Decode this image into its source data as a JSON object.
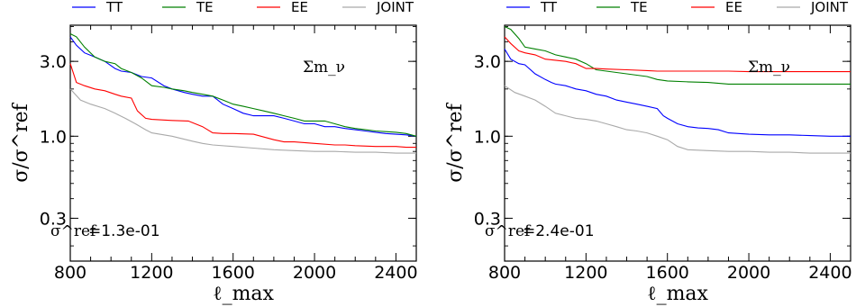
{
  "chart_data": [
    {
      "type": "line",
      "annotation": "Σm_ν",
      "ref_label": "σ^ref",
      "ref_value": "=1.3e-01",
      "xlabel": "ℓ_max",
      "ylabel": "σ/σ^ref",
      "x_ticks": [
        "800",
        "1200",
        "1600",
        "2000",
        "2400"
      ],
      "y_ticks": [
        "0.3",
        "1.0",
        "3.0"
      ],
      "xlim": [
        800,
        2500
      ],
      "ylim": [
        0.16,
        5.1
      ],
      "yscale": "log",
      "series": [
        {
          "name": "TT",
          "color": "#0000ff",
          "x": [
            800,
            830,
            870,
            920,
            970,
            1020,
            1050,
            1100,
            1150,
            1200,
            1260,
            1300,
            1360,
            1400,
            1450,
            1500,
            1550,
            1600,
            1650,
            1700,
            1750,
            1800,
            1850,
            1900,
            1950,
            2000,
            2050,
            2100,
            2150,
            2200,
            2250,
            2300,
            2350,
            2400,
            2450,
            2500
          ],
          "y": [
            4.3,
            3.8,
            3.4,
            3.2,
            3.0,
            2.7,
            2.6,
            2.55,
            2.4,
            2.35,
            2.1,
            2.0,
            1.9,
            1.85,
            1.8,
            1.8,
            1.6,
            1.5,
            1.4,
            1.35,
            1.35,
            1.35,
            1.3,
            1.25,
            1.2,
            1.2,
            1.15,
            1.15,
            1.12,
            1.1,
            1.08,
            1.06,
            1.04,
            1.03,
            1.02,
            1.0
          ]
        },
        {
          "name": "TE",
          "color": "#008000",
          "x": [
            800,
            830,
            870,
            920,
            970,
            1020,
            1050,
            1100,
            1150,
            1200,
            1260,
            1300,
            1360,
            1400,
            1450,
            1500,
            1550,
            1600,
            1650,
            1700,
            1750,
            1800,
            1850,
            1900,
            1950,
            2000,
            2050,
            2100,
            2150,
            2200,
            2250,
            2300,
            2350,
            2400,
            2450,
            2500
          ],
          "y": [
            4.5,
            4.3,
            3.7,
            3.2,
            3.0,
            2.9,
            2.7,
            2.55,
            2.35,
            2.1,
            2.05,
            2.0,
            1.95,
            1.9,
            1.85,
            1.8,
            1.7,
            1.6,
            1.55,
            1.5,
            1.45,
            1.4,
            1.35,
            1.3,
            1.25,
            1.25,
            1.25,
            1.2,
            1.15,
            1.12,
            1.1,
            1.08,
            1.07,
            1.06,
            1.04,
            1.0
          ]
        },
        {
          "name": "EE",
          "color": "#ff0000",
          "x": [
            800,
            830,
            870,
            920,
            970,
            1020,
            1050,
            1100,
            1130,
            1170,
            1200,
            1250,
            1300,
            1380,
            1450,
            1500,
            1550,
            1600,
            1700,
            1800,
            1850,
            1900,
            1950,
            2000,
            2100,
            2150,
            2200,
            2300,
            2400,
            2450,
            2500
          ],
          "y": [
            2.9,
            2.2,
            2.1,
            2.0,
            1.95,
            1.85,
            1.8,
            1.75,
            1.45,
            1.3,
            1.28,
            1.27,
            1.26,
            1.25,
            1.15,
            1.05,
            1.04,
            1.04,
            1.03,
            0.95,
            0.92,
            0.92,
            0.91,
            0.9,
            0.88,
            0.88,
            0.87,
            0.86,
            0.86,
            0.85,
            0.85
          ]
        },
        {
          "name": "JOINT",
          "color": "#a9a9a9",
          "x": [
            800,
            850,
            900,
            970,
            1020,
            1070,
            1120,
            1170,
            1200,
            1300,
            1400,
            1450,
            1500,
            1600,
            1700,
            1800,
            1900,
            2000,
            2100,
            2200,
            2300,
            2400,
            2500
          ],
          "y": [
            2.0,
            1.7,
            1.6,
            1.5,
            1.4,
            1.3,
            1.2,
            1.1,
            1.05,
            1.0,
            0.93,
            0.9,
            0.88,
            0.86,
            0.84,
            0.82,
            0.81,
            0.8,
            0.8,
            0.79,
            0.79,
            0.78,
            0.78
          ]
        }
      ]
    },
    {
      "type": "line",
      "annotation": "Σm_ν",
      "ref_label": "σ^ref",
      "ref_value": "=2.4e-01",
      "xlabel": "ℓ_max",
      "ylabel": "σ/σ^ref",
      "x_ticks": [
        "800",
        "1200",
        "1600",
        "2000",
        "2400"
      ],
      "y_ticks": [
        "0.3",
        "1.0",
        "3.0"
      ],
      "xlim": [
        800,
        2500
      ],
      "ylim": [
        0.16,
        5.1
      ],
      "yscale": "log",
      "series": [
        {
          "name": "TT",
          "color": "#0000ff",
          "x": [
            800,
            830,
            870,
            900,
            950,
            1000,
            1030,
            1050,
            1100,
            1150,
            1200,
            1250,
            1300,
            1350,
            1400,
            1450,
            1500,
            1550,
            1580,
            1600,
            1650,
            1700,
            1750,
            1800,
            1850,
            1900,
            1950,
            2000,
            2100,
            2200,
            2300,
            2400,
            2500
          ],
          "y": [
            3.6,
            3.1,
            2.9,
            2.85,
            2.5,
            2.3,
            2.2,
            2.15,
            2.1,
            2.0,
            1.95,
            1.85,
            1.8,
            1.7,
            1.65,
            1.6,
            1.55,
            1.5,
            1.35,
            1.3,
            1.2,
            1.15,
            1.13,
            1.12,
            1.1,
            1.05,
            1.04,
            1.03,
            1.02,
            1.02,
            1.01,
            1.0,
            1.0
          ]
        },
        {
          "name": "TE",
          "color": "#008000",
          "x": [
            800,
            830,
            870,
            900,
            950,
            1000,
            1050,
            1100,
            1150,
            1200,
            1250,
            1300,
            1350,
            1400,
            1450,
            1500,
            1550,
            1600,
            1700,
            1800,
            1900,
            2000,
            2100,
            2200,
            2300,
            2400,
            2500
          ],
          "y": [
            5.0,
            4.8,
            4.2,
            3.7,
            3.6,
            3.5,
            3.3,
            3.2,
            3.1,
            2.9,
            2.65,
            2.6,
            2.55,
            2.5,
            2.45,
            2.4,
            2.3,
            2.25,
            2.22,
            2.2,
            2.15,
            2.15,
            2.15,
            2.15,
            2.15,
            2.15,
            2.15
          ]
        },
        {
          "name": "EE",
          "color": "#ff0000",
          "x": [
            800,
            830,
            870,
            900,
            950,
            1000,
            1050,
            1100,
            1150,
            1200,
            1250,
            1300,
            1400,
            1500,
            1550,
            1600,
            1700,
            1800,
            1900,
            2000,
            2100,
            2200,
            2300,
            2400,
            2500
          ],
          "y": [
            4.3,
            3.9,
            3.5,
            3.4,
            3.3,
            3.1,
            3.05,
            3.0,
            2.9,
            2.7,
            2.7,
            2.68,
            2.65,
            2.62,
            2.6,
            2.6,
            2.6,
            2.6,
            2.6,
            2.58,
            2.58,
            2.58,
            2.58,
            2.58,
            2.58
          ]
        },
        {
          "name": "JOINT",
          "color": "#a9a9a9",
          "x": [
            800,
            850,
            900,
            950,
            1000,
            1050,
            1100,
            1150,
            1200,
            1250,
            1300,
            1350,
            1400,
            1450,
            1500,
            1550,
            1600,
            1650,
            1700,
            1800,
            1900,
            2000,
            2100,
            2200,
            2300,
            2400,
            2500
          ],
          "y": [
            2.1,
            1.9,
            1.8,
            1.7,
            1.55,
            1.4,
            1.35,
            1.3,
            1.28,
            1.25,
            1.2,
            1.15,
            1.1,
            1.08,
            1.05,
            1.0,
            0.95,
            0.86,
            0.82,
            0.81,
            0.8,
            0.8,
            0.79,
            0.79,
            0.78,
            0.78,
            0.78
          ]
        }
      ]
    }
  ]
}
